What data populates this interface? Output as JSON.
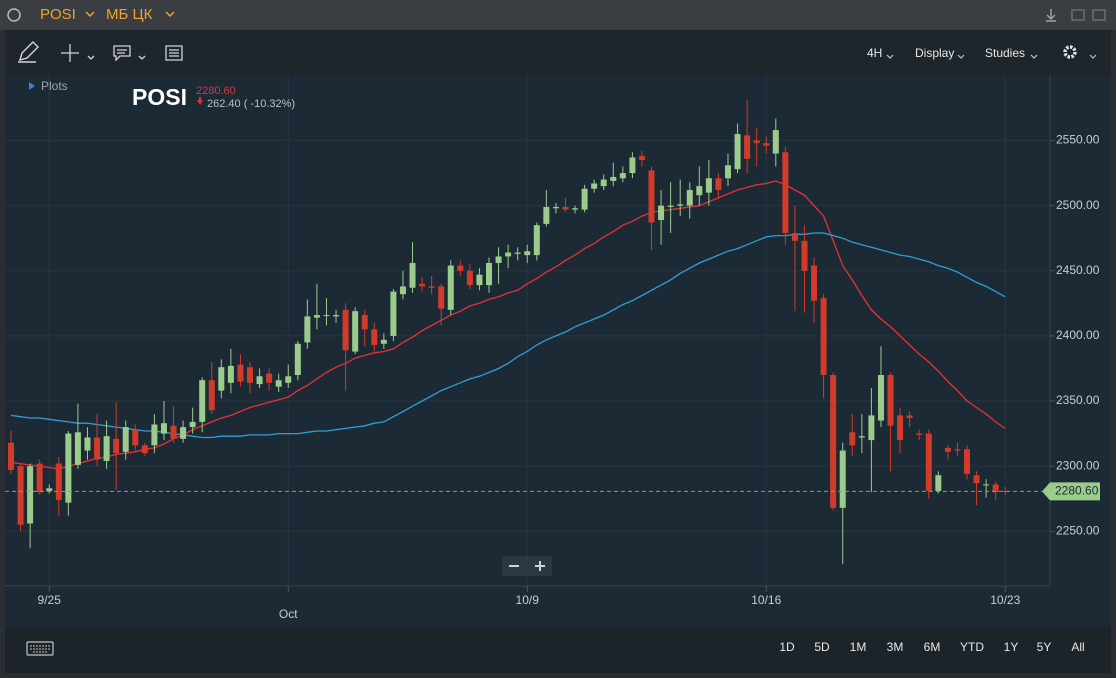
{
  "title_bar": {
    "symbol": "POSI",
    "exchange": "МБ ЦК"
  },
  "toolbar": {
    "interval": "4H",
    "display": "Display",
    "studies": "Studies"
  },
  "legend": {
    "plots": "Plots",
    "symbol": "POSI",
    "change": "262.40 ( -10.32%)"
  },
  "ranges": [
    "1D",
    "5D",
    "1M",
    "3M",
    "6M",
    "YTD",
    "1Y",
    "5Y",
    "All"
  ],
  "chart_data": {
    "type": "candlestick",
    "categories": [
      null,
      null,
      null,
      null,
      "9/25",
      null,
      null,
      null,
      null,
      null,
      null,
      null,
      null,
      null,
      null,
      null,
      null,
      null,
      null,
      null,
      null,
      null,
      null,
      null,
      null,
      null,
      null,
      null,
      null,
      "Oct",
      null,
      null,
      null,
      null,
      null,
      null,
      null,
      null,
      null,
      null,
      null,
      null,
      null,
      null,
      null,
      null,
      null,
      null,
      null,
      null,
      null,
      null,
      null,
      null,
      "10/9",
      null,
      null,
      null,
      null,
      null,
      null,
      null,
      null,
      null,
      null,
      null,
      null,
      null,
      null,
      null,
      null,
      null,
      null,
      null,
      null,
      null,
      null,
      null,
      null,
      "10/16",
      null,
      null,
      null,
      null,
      null,
      null,
      null,
      null,
      null,
      null,
      null,
      null,
      null,
      null,
      null,
      null,
      null,
      null,
      null,
      null,
      null,
      null,
      null,
      null,
      "10/23"
    ],
    "open": [
      2318,
      2300,
      2256,
      2302,
      2281,
      2302,
      2272,
      2301,
      2312,
      2322,
      2304,
      2321,
      2311,
      2328,
      2316,
      2316,
      2325,
      2331,
      2321,
      2330,
      2334,
      2366,
      2358,
      2364,
      2378,
      2376,
      2363,
      2371,
      2361,
      2364,
      2370,
      2395,
      2414,
      2416,
      2415,
      2420,
      2388,
      2416,
      2405,
      2394,
      2400,
      2432,
      2437,
      2440,
      2438,
      2438,
      2420,
      2454,
      2450,
      2439,
      2439,
      2456,
      2461,
      2463,
      2462,
      2462,
      2486,
      2498,
      2499,
      2497,
      2497,
      2513,
      2515,
      2519,
      2521,
      2525,
      2538,
      2527,
      2489,
      2499,
      2500,
      2500,
      2508,
      2510,
      2521,
      2521,
      2528,
      2554,
      2550,
      2548,
      2540,
      2541,
      2479,
      2473,
      2454,
      2429,
      2370,
      2268,
      2326,
      2322,
      2320,
      2335,
      2370,
      2339,
      2339,
      2325,
      2325,
      2281,
      2314,
      2313,
      2313,
      2293,
      2286,
      2286,
      2281
    ],
    "high": [
      2327,
      2302,
      2302,
      2305,
      2286,
      2307,
      2327,
      2348,
      2330,
      2340,
      2335,
      2349,
      2335,
      2332,
      2318,
      2340,
      2350,
      2346,
      2335,
      2345,
      2368,
      2380,
      2382,
      2390,
      2386,
      2380,
      2375,
      2375,
      2371,
      2378,
      2396,
      2428,
      2440,
      2429,
      2420,
      2425,
      2422,
      2420,
      2410,
      2402,
      2436,
      2450,
      2472,
      2445,
      2446,
      2440,
      2458,
      2458,
      2455,
      2452,
      2460,
      2468,
      2470,
      2468,
      2470,
      2487,
      2512,
      2502,
      2506,
      2500,
      2516,
      2520,
      2524,
      2533,
      2530,
      2541,
      2542,
      2530,
      2512,
      2518,
      2520,
      2518,
      2530,
      2535,
      2525,
      2540,
      2563,
      2581,
      2560,
      2553,
      2567,
      2545,
      2500,
      2485,
      2460,
      2432,
      2372,
      2318,
      2340,
      2340,
      2360,
      2392,
      2372,
      2345,
      2342,
      2328,
      2328,
      2296,
      2316,
      2318,
      2316,
      2296,
      2290,
      2288,
      2284
    ],
    "low": [
      2294,
      2250,
      2237,
      2278,
      2279,
      2262,
      2262,
      2298,
      2305,
      2300,
      2298,
      2282,
      2305,
      2312,
      2308,
      2310,
      2320,
      2318,
      2318,
      2325,
      2326,
      2340,
      2352,
      2356,
      2361,
      2356,
      2360,
      2358,
      2357,
      2360,
      2366,
      2390,
      2405,
      2408,
      2410,
      2358,
      2386,
      2392,
      2388,
      2390,
      2396,
      2428,
      2433,
      2434,
      2432,
      2408,
      2416,
      2446,
      2436,
      2435,
      2433,
      2440,
      2452,
      2458,
      2456,
      2458,
      2484,
      2494,
      2495,
      2494,
      2495,
      2510,
      2512,
      2515,
      2518,
      2521,
      2530,
      2466,
      2470,
      2479,
      2492,
      2490,
      2500,
      2500,
      2505,
      2515,
      2525,
      2525,
      2530,
      2540,
      2530,
      2470,
      2419,
      2418,
      2410,
      2352,
      2266,
      2225,
      2308,
      2310,
      2280,
      2330,
      2296,
      2310,
      2330,
      2320,
      2275,
      2279,
      2305,
      2308,
      2290,
      2270,
      2276,
      2274,
      2278
    ],
    "close": [
      2297,
      2255,
      2300,
      2280,
      2283,
      2274,
      2325,
      2326,
      2322,
      2305,
      2323,
      2310,
      2330,
      2316,
      2310,
      2332,
      2333,
      2321,
      2330,
      2334,
      2366,
      2343,
      2376,
      2377,
      2365,
      2364,
      2369,
      2364,
      2366,
      2369,
      2394,
      2415,
      2416,
      2416,
      2416,
      2389,
      2419,
      2405,
      2393,
      2397,
      2434,
      2438,
      2456,
      2438,
      2437,
      2421,
      2454,
      2450,
      2439,
      2447,
      2456,
      2461,
      2464,
      2464,
      2465,
      2485,
      2499,
      2499,
      2497,
      2498,
      2513,
      2517,
      2520,
      2522,
      2525,
      2537,
      2535,
      2487,
      2500,
      2500,
      2501,
      2512,
      2515,
      2521,
      2512,
      2531,
      2555,
      2536,
      2548,
      2546,
      2558,
      2479,
      2473,
      2450,
      2427,
      2370,
      2268,
      2312,
      2316,
      2323,
      2339,
      2370,
      2331,
      2320,
      2337,
      2324,
      2281,
      2293,
      2311,
      2312,
      2294,
      2287,
      2286,
      2280,
      2280.6
    ],
    "up_color": "#9ccc8c",
    "down_color": "#d23b2a",
    "series": [
      {
        "color": "#e8303a",
        "values": [
          2303,
          2302,
          2301,
          2300,
          2299,
          2298,
          2300,
          2302,
          2304,
          2306,
          2307,
          2309,
          2310,
          2311,
          2313,
          2314,
          2317,
          2321,
          2324,
          2328,
          2331,
          2334,
          2337,
          2339,
          2342,
          2345,
          2347,
          2349,
          2351,
          2353,
          2358,
          2362,
          2367,
          2372,
          2376,
          2379,
          2383,
          2385,
          2387,
          2388,
          2390,
          2395,
          2399,
          2404,
          2408,
          2412,
          2416,
          2419,
          2423,
          2425,
          2428,
          2430,
          2433,
          2435,
          2440,
          2444,
          2449,
          2453,
          2458,
          2462,
          2467,
          2471,
          2476,
          2480,
          2485,
          2488,
          2492,
          2495,
          2496,
          2497,
          2498,
          2499,
          2500,
          2503,
          2506,
          2509,
          2512,
          2514,
          2516,
          2517,
          2519,
          2516,
          2512,
          2508,
          2500,
          2492,
          2473,
          2454,
          2443,
          2431,
          2420,
          2413,
          2407,
          2400,
          2393,
          2386,
          2380,
          2373,
          2365,
          2358,
          2350,
          2345,
          2340,
          2334,
          2329
        ]
      },
      {
        "color": "#2e9fd6",
        "values": [
          2339,
          2338,
          2337,
          2337,
          2336,
          2335,
          2334,
          2333,
          2333,
          2332,
          2331,
          2330,
          2329,
          2328,
          2327,
          2327,
          2326,
          2325,
          2324,
          2323,
          2322,
          2322,
          2323,
          2323,
          2323,
          2324,
          2324,
          2324,
          2325,
          2325,
          2325,
          2326,
          2327,
          2327,
          2328,
          2329,
          2330,
          2331,
          2333,
          2334,
          2338,
          2342,
          2346,
          2350,
          2354,
          2358,
          2361,
          2364,
          2367,
          2369,
          2372,
          2375,
          2379,
          2384,
          2388,
          2393,
          2397,
          2400,
          2403,
          2407,
          2410,
          2413,
          2416,
          2420,
          2424,
          2427,
          2431,
          2435,
          2439,
          2443,
          2448,
          2452,
          2456,
          2459,
          2462,
          2465,
          2467,
          2470,
          2473,
          2476,
          2477,
          2477,
          2478,
          2478,
          2479,
          2479,
          2477,
          2475,
          2472,
          2470,
          2468,
          2466,
          2464,
          2462,
          2461,
          2459,
          2457,
          2454,
          2452,
          2449,
          2445,
          2441,
          2438,
          2434,
          2430
        ]
      }
    ],
    "last_price": {
      "value": 2280.6,
      "label": "2280.60"
    },
    "ylim": [
      2208,
      2598
    ],
    "yticks": [
      {
        "value": 2250,
        "label": "2250.00"
      },
      {
        "value": 2300,
        "label": "2300.00"
      },
      {
        "value": 2350,
        "label": "2350.00"
      },
      {
        "value": 2400,
        "label": "2400.00"
      },
      {
        "value": 2450,
        "label": "2450.00"
      },
      {
        "value": 2500,
        "label": "2500.00"
      },
      {
        "value": 2550,
        "label": "2550.00"
      }
    ],
    "grid": true
  }
}
